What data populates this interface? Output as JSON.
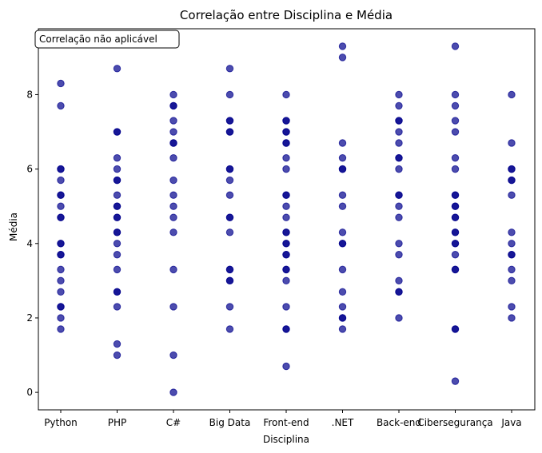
{
  "chart_data": {
    "type": "scatter",
    "title": "Correlação entre Disciplina e Média",
    "xlabel": "Disciplina",
    "ylabel": "Média",
    "annotation": "Correlação não aplicável",
    "categories": [
      "Python",
      "PHP",
      "C#",
      "Big Data",
      "Front-end",
      ".NET",
      "Back-end",
      "Cibersegurança",
      "Java"
    ],
    "ylim": [
      -0.47,
      9.77
    ],
    "yticks": [
      0,
      2,
      4,
      6,
      8
    ],
    "grid": false,
    "marker_color": "#00008b",
    "points": {
      "Python": [
        8.3,
        7.7,
        6.0,
        6.0,
        5.7,
        5.3,
        5.3,
        5.0,
        4.7,
        4.7,
        4.0,
        4.0,
        3.7,
        3.7,
        3.3,
        3.0,
        2.7,
        2.3,
        2.3,
        2.0,
        1.7
      ],
      "PHP": [
        8.7,
        7.0,
        7.0,
        6.3,
        6.0,
        5.7,
        5.7,
        5.3,
        5.0,
        5.0,
        4.7,
        4.7,
        4.3,
        4.3,
        4.0,
        3.7,
        3.3,
        2.7,
        2.7,
        2.3,
        1.3,
        1.0
      ],
      "C#": [
        8.0,
        7.7,
        7.7,
        7.3,
        7.0,
        6.7,
        6.7,
        6.3,
        5.7,
        5.3,
        5.0,
        4.7,
        4.3,
        3.3,
        2.3,
        1.0,
        0.0
      ],
      "Big Data": [
        8.7,
        8.0,
        7.3,
        7.3,
        7.0,
        7.0,
        6.0,
        6.0,
        5.7,
        5.3,
        4.7,
        4.7,
        4.3,
        3.3,
        3.3,
        3.0,
        3.0,
        2.3,
        1.7
      ],
      "Front-end": [
        8.0,
        7.3,
        7.3,
        7.0,
        7.0,
        6.7,
        6.7,
        6.3,
        6.0,
        5.3,
        5.3,
        5.0,
        4.7,
        4.3,
        4.3,
        4.0,
        4.0,
        3.7,
        3.7,
        3.3,
        3.3,
        3.0,
        2.3,
        1.7,
        1.7,
        0.7
      ],
      ".NET": [
        9.3,
        9.0,
        6.7,
        6.3,
        6.0,
        6.0,
        5.3,
        5.0,
        4.3,
        4.0,
        4.0,
        3.3,
        2.7,
        2.3,
        2.0,
        2.0,
        1.7
      ],
      "Back-end": [
        8.0,
        7.7,
        7.3,
        7.3,
        7.0,
        6.7,
        6.3,
        6.3,
        6.0,
        5.3,
        5.3,
        5.0,
        4.7,
        4.0,
        3.7,
        3.0,
        2.7,
        2.7,
        2.0
      ],
      "Cibersegurança": [
        9.3,
        8.0,
        7.7,
        7.3,
        7.0,
        6.3,
        6.0,
        5.3,
        5.3,
        5.0,
        5.0,
        4.7,
        4.7,
        4.3,
        4.3,
        4.0,
        4.0,
        3.7,
        3.3,
        3.3,
        1.7,
        1.7,
        0.3
      ],
      "Java": [
        8.0,
        6.7,
        6.0,
        6.0,
        5.7,
        5.7,
        5.3,
        4.3,
        4.0,
        3.7,
        3.7,
        3.3,
        3.0,
        2.3,
        2.0
      ]
    }
  }
}
